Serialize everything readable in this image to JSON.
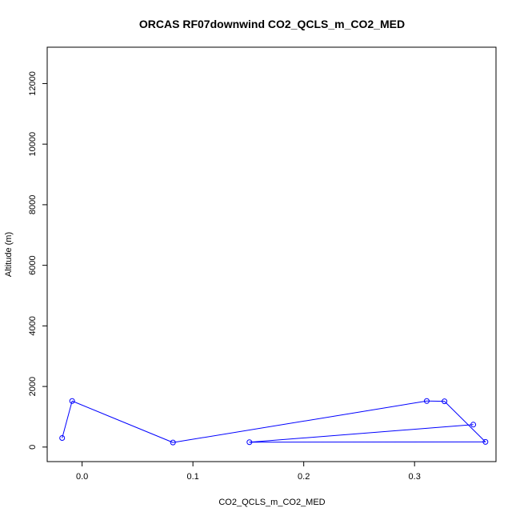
{
  "chart_data": {
    "type": "line",
    "title": "ORCAS RF07downwind CO2_QCLS_m_CO2_MED",
    "xlabel": "CO2_QCLS_m_CO2_MED",
    "ylabel": "Altitude (m)",
    "xlim": [
      -0.0315,
      0.3735
    ],
    "ylim": [
      -480,
      13200
    ],
    "xticks": [
      0.0,
      0.1,
      0.2,
      0.3
    ],
    "xtick_labels": [
      "0.0",
      "0.1",
      "0.2",
      "0.3"
    ],
    "yticks": [
      0,
      2000,
      4000,
      6000,
      8000,
      10000,
      12000
    ],
    "ytick_labels": [
      "0",
      "2000",
      "4000",
      "6000",
      "8000",
      "10000",
      "12000"
    ],
    "grid": false,
    "series": [
      {
        "color": "#0000ff",
        "marker": "open-circle",
        "x": [
          -0.018,
          -0.009,
          0.082,
          0.311,
          0.327,
          0.364,
          0.151,
          0.353
        ],
        "y": [
          300,
          1520,
          150,
          1520,
          1510,
          170,
          160,
          740
        ]
      }
    ]
  }
}
